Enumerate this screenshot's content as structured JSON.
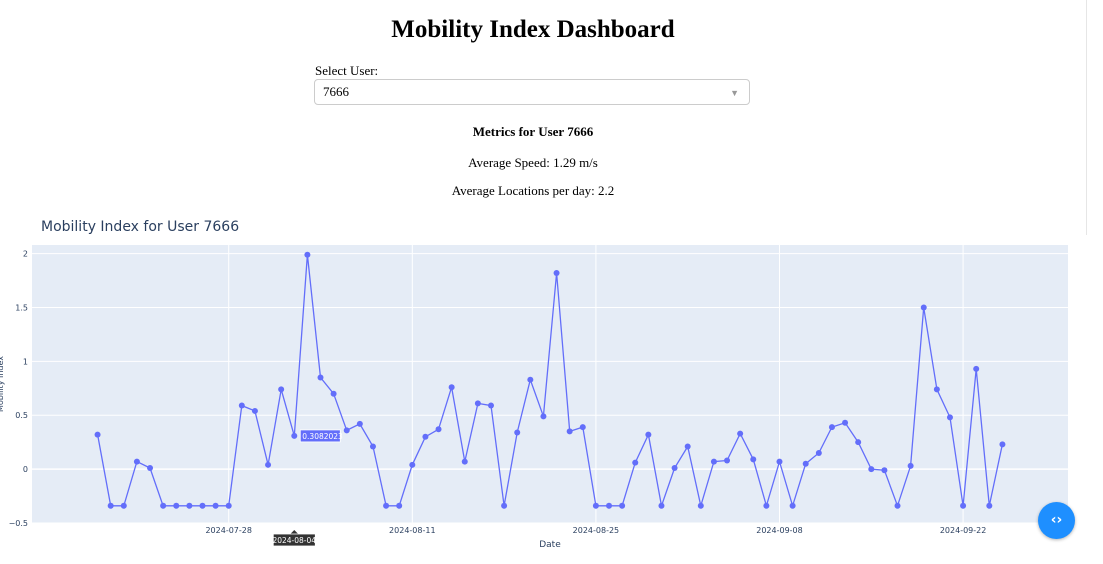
{
  "header": {
    "title": "Mobility Index Dashboard"
  },
  "user_select": {
    "label": "Select User:",
    "value": "7666"
  },
  "metrics": {
    "title": "Metrics for User 7666",
    "average_speed": "Average Speed: 1.29 m/s",
    "average_locations": "Average Locations per day: 2.2"
  },
  "colors": {
    "plot_bg": "#e5ecf6",
    "line": "#636efa",
    "nav_button": "#1e8fff"
  },
  "nav_button": {
    "icon": "code-icon",
    "glyph": "‹›"
  },
  "chart_data": {
    "type": "line",
    "title": "Mobility Index for User 7666",
    "xlabel": "Date",
    "ylabel": "Mobility Index",
    "ylim": [
      -0.5,
      2.08
    ],
    "yticks": [
      -0.5,
      0,
      0.5,
      1,
      1.5,
      2
    ],
    "ytick_labels": [
      "−0.5",
      "0",
      "0.5",
      "1",
      "1.5",
      "2"
    ],
    "xlim": [
      "2024-07-13",
      "2024-09-30"
    ],
    "xticks": [
      "2024-07-28",
      "2024-08-11",
      "2024-08-25",
      "2024-09-08",
      "2024-09-22"
    ],
    "grid": true,
    "series": [
      {
        "values": [
          [
            "2024-07-18",
            0.32
          ],
          [
            "2024-07-19",
            -0.34
          ],
          [
            "2024-07-20",
            -0.34
          ],
          [
            "2024-07-21",
            0.07
          ],
          [
            "2024-07-22",
            0.01
          ],
          [
            "2024-07-23",
            -0.34
          ],
          [
            "2024-07-24",
            -0.34
          ],
          [
            "2024-07-25",
            -0.34
          ],
          [
            "2024-07-26",
            -0.34
          ],
          [
            "2024-07-27",
            -0.34
          ],
          [
            "2024-07-28",
            -0.34
          ],
          [
            "2024-07-29",
            0.59
          ],
          [
            "2024-07-30",
            0.54
          ],
          [
            "2024-07-31",
            0.04
          ],
          [
            "2024-08-01",
            0.74
          ],
          [
            "2024-08-02",
            0.3082023
          ],
          [
            "2024-08-03",
            1.99
          ],
          [
            "2024-08-04",
            0.85
          ],
          [
            "2024-08-05",
            0.7
          ],
          [
            "2024-08-06",
            0.36
          ],
          [
            "2024-08-07",
            0.42
          ],
          [
            "2024-08-08",
            0.21
          ],
          [
            "2024-08-09",
            -0.34
          ],
          [
            "2024-08-10",
            -0.34
          ],
          [
            "2024-08-11",
            0.04
          ],
          [
            "2024-08-12",
            0.3
          ],
          [
            "2024-08-13",
            0.37
          ],
          [
            "2024-08-14",
            0.76
          ],
          [
            "2024-08-15",
            0.07
          ],
          [
            "2024-08-16",
            0.61
          ],
          [
            "2024-08-17",
            0.59
          ],
          [
            "2024-08-18",
            -0.34
          ],
          [
            "2024-08-19",
            0.34
          ],
          [
            "2024-08-20",
            0.83
          ],
          [
            "2024-08-21",
            0.49
          ],
          [
            "2024-08-22",
            1.82
          ],
          [
            "2024-08-23",
            0.35
          ],
          [
            "2024-08-24",
            0.39
          ],
          [
            "2024-08-25",
            -0.34
          ],
          [
            "2024-08-26",
            -0.34
          ],
          [
            "2024-08-27",
            -0.34
          ],
          [
            "2024-08-28",
            0.06
          ],
          [
            "2024-08-29",
            0.32
          ],
          [
            "2024-08-30",
            -0.34
          ],
          [
            "2024-08-31",
            0.01
          ],
          [
            "2024-09-01",
            0.21
          ],
          [
            "2024-09-02",
            -0.34
          ],
          [
            "2024-09-03",
            0.07
          ],
          [
            "2024-09-04",
            0.08
          ],
          [
            "2024-09-05",
            0.33
          ],
          [
            "2024-09-06",
            0.09
          ],
          [
            "2024-09-07",
            -0.34
          ],
          [
            "2024-09-08",
            0.07
          ],
          [
            "2024-09-09",
            -0.34
          ],
          [
            "2024-09-10",
            0.05
          ],
          [
            "2024-09-11",
            0.15
          ],
          [
            "2024-09-12",
            0.39
          ],
          [
            "2024-09-13",
            0.43
          ],
          [
            "2024-09-14",
            0.25
          ],
          [
            "2024-09-15",
            0.0
          ],
          [
            "2024-09-16",
            -0.01
          ],
          [
            "2024-09-17",
            -0.34
          ],
          [
            "2024-09-18",
            0.03
          ],
          [
            "2024-09-19",
            1.5
          ],
          [
            "2024-09-20",
            0.74
          ],
          [
            "2024-09-21",
            0.48
          ],
          [
            "2024-09-22",
            -0.34
          ],
          [
            "2024-09-23",
            0.93
          ],
          [
            "2024-09-24",
            -0.34
          ],
          [
            "2024-09-25",
            0.23
          ]
        ]
      }
    ],
    "hover": {
      "date": "2024-08-04",
      "value_label": "0.3082023",
      "point_date": "2024-08-02"
    }
  }
}
